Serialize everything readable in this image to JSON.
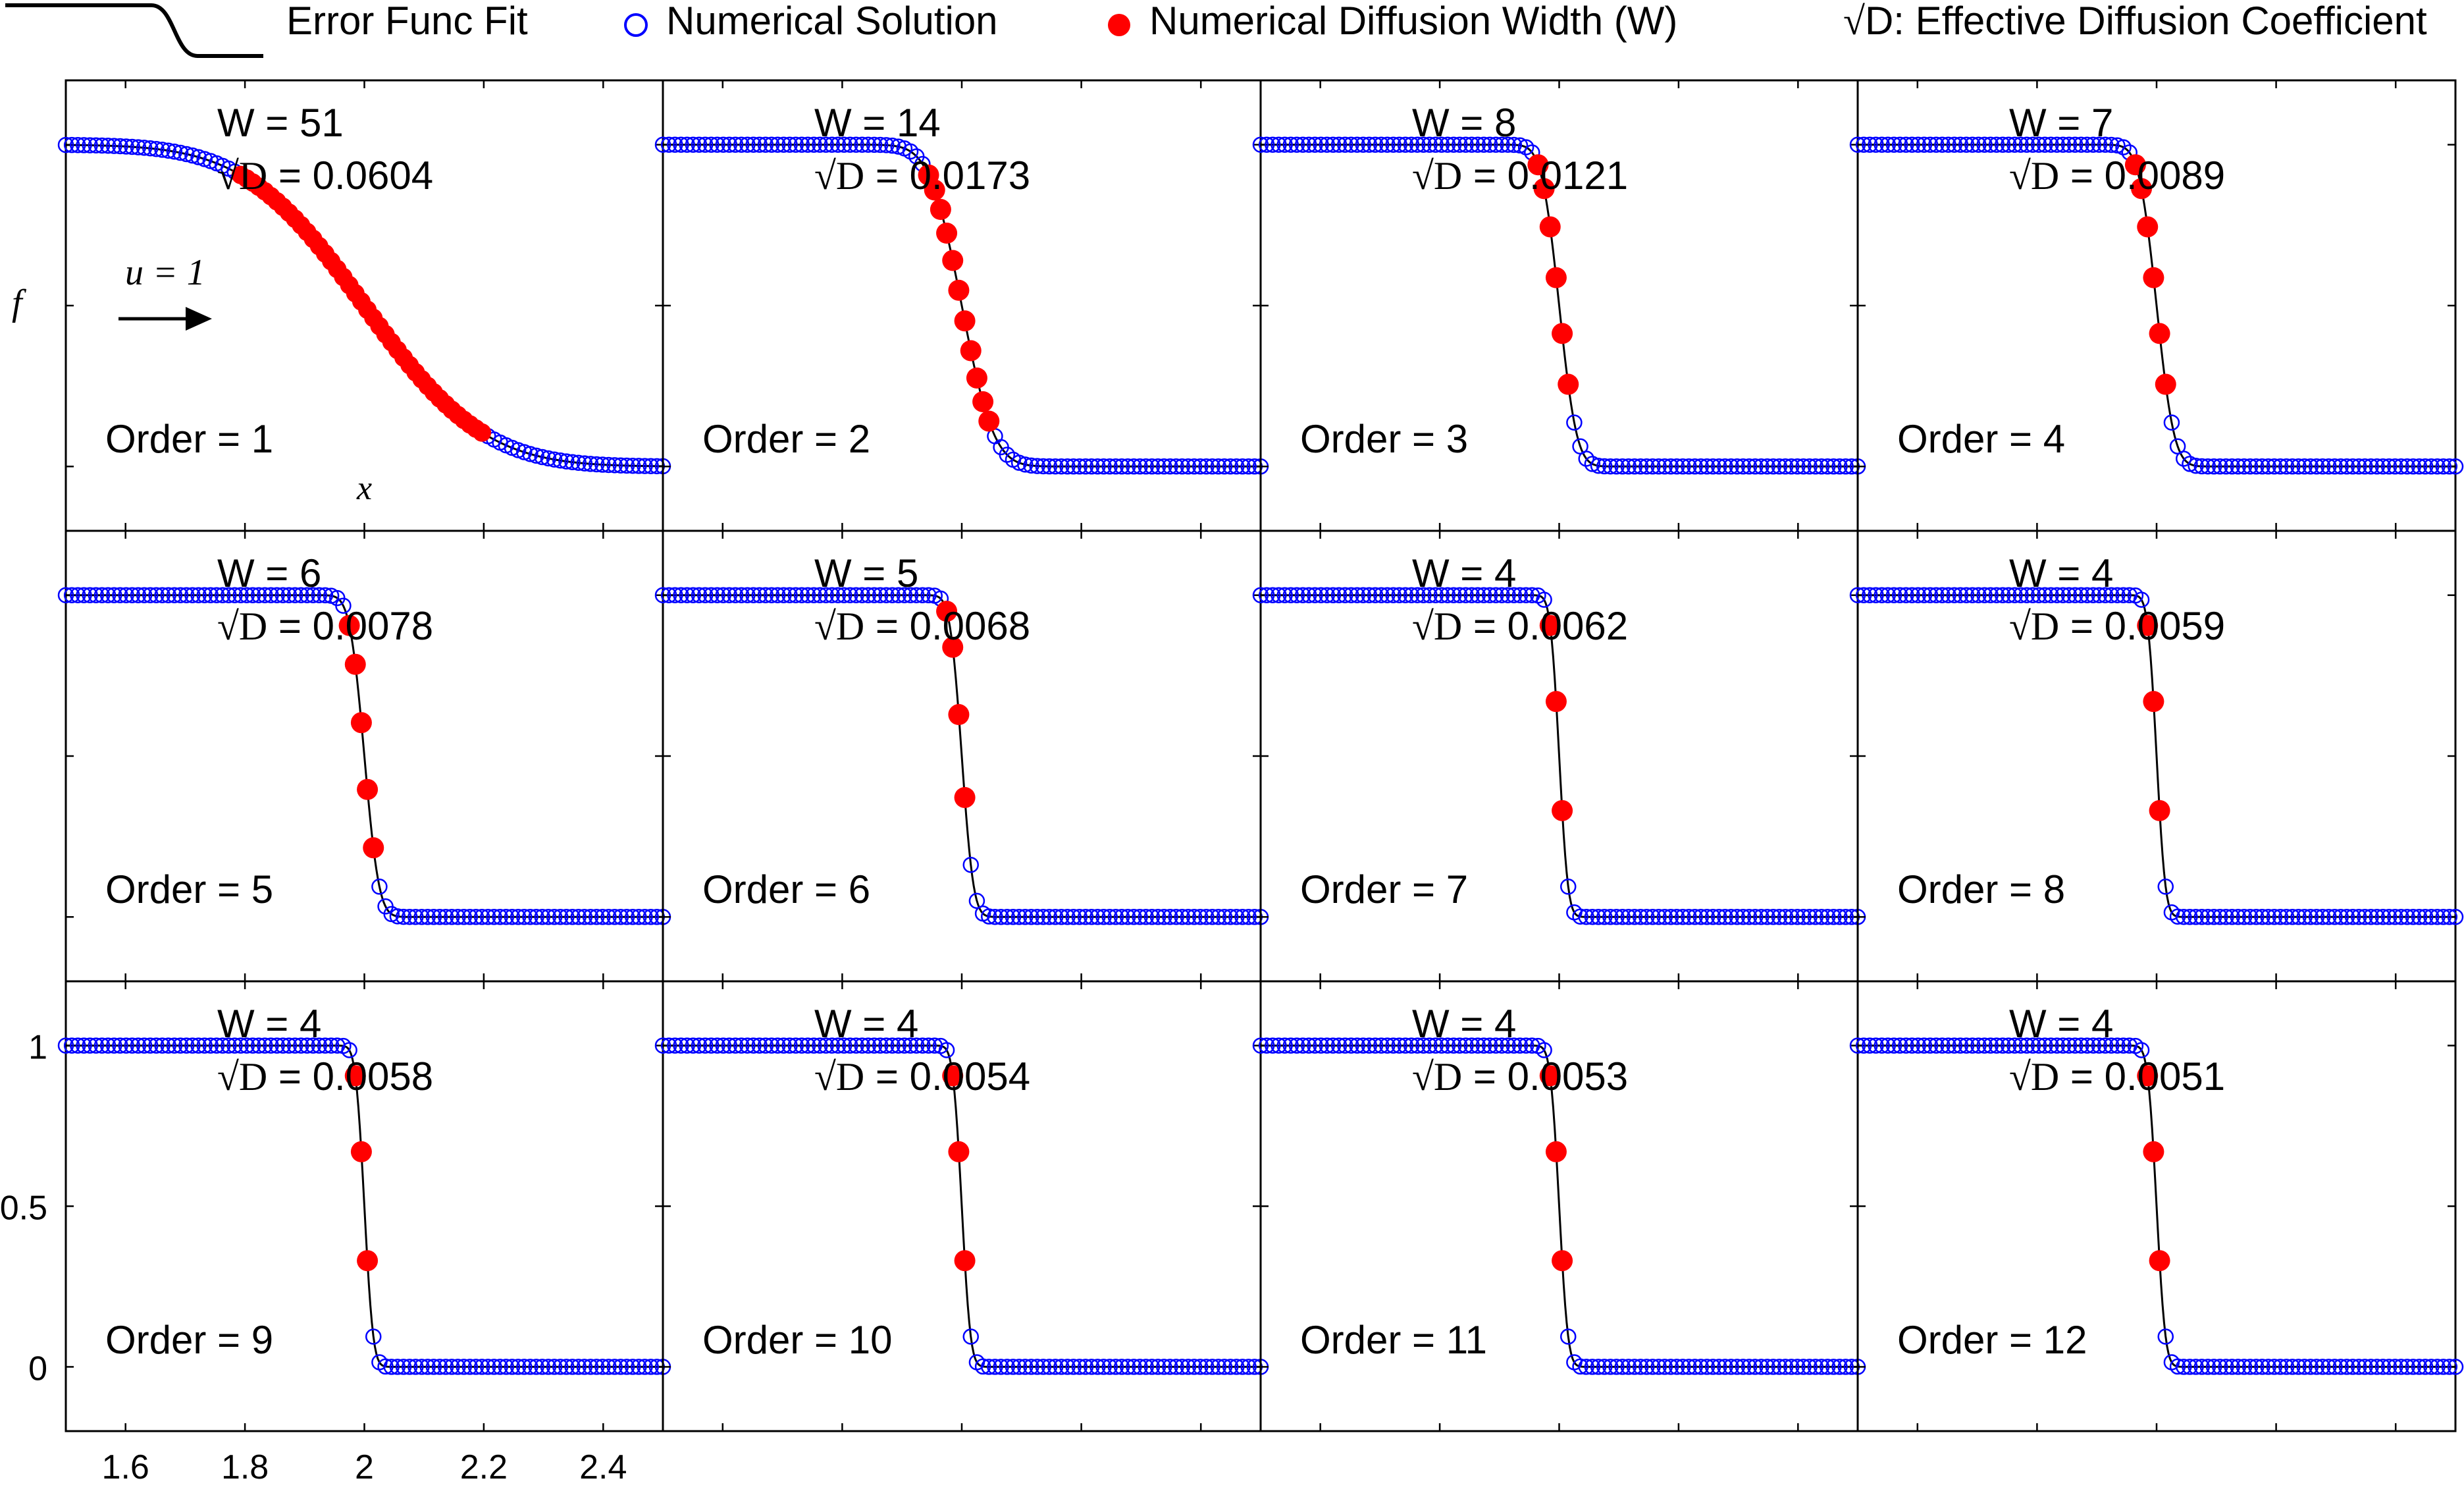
{
  "legend": {
    "fit_label": "Error Func Fit",
    "numerical_label": "Numerical Solution",
    "width_label": "Numerical Diffusion Width (W)",
    "sqrt_symbol": "√",
    "coef_label": "D: Effective Diffusion Coefficient"
  },
  "colors": {
    "axes": "#000000",
    "fit_line": "#000000",
    "open_marker": "#0000ff",
    "filled_marker": "#ff0000",
    "background": "#ffffff"
  },
  "chart_data": {
    "type": "scatter",
    "layout": "grid-3x4",
    "x_range": [
      1.5,
      2.5
    ],
    "y_range": [
      -0.2,
      1.2
    ],
    "x_ticks": [
      "1.6",
      "1.8",
      "2",
      "2.2",
      "2.4"
    ],
    "y_ticks": [
      "0",
      "0.5",
      "1"
    ],
    "xlabel": "x",
    "ylabel": "f",
    "velocity_label": "u = 1",
    "grid_points": 100,
    "front_center": 2.0,
    "panels": [
      {
        "order": 1,
        "order_label": "Order = 1",
        "w_label": "W = 51",
        "d_value": " = 0.0604",
        "W": 51,
        "sqrtD": 0.0604
      },
      {
        "order": 2,
        "order_label": "Order = 2",
        "w_label": "W = 14",
        "d_value": " = 0.0173",
        "W": 14,
        "sqrtD": 0.0173
      },
      {
        "order": 3,
        "order_label": "Order = 3",
        "w_label": "W = 8",
        "d_value": " = 0.0121",
        "W": 8,
        "sqrtD": 0.0121
      },
      {
        "order": 4,
        "order_label": "Order = 4",
        "w_label": "W = 7",
        "d_value": " = 0.0089",
        "W": 7,
        "sqrtD": 0.0089
      },
      {
        "order": 5,
        "order_label": "Order = 5",
        "w_label": "W = 6",
        "d_value": " = 0.0078",
        "W": 6,
        "sqrtD": 0.0078
      },
      {
        "order": 6,
        "order_label": "Order = 6",
        "w_label": "W = 5",
        "d_value": " = 0.0068",
        "W": 5,
        "sqrtD": 0.0068
      },
      {
        "order": 7,
        "order_label": "Order = 7",
        "w_label": "W = 4",
        "d_value": " = 0.0062",
        "W": 4,
        "sqrtD": 0.0062
      },
      {
        "order": 8,
        "order_label": "Order = 8",
        "w_label": "W = 4",
        "d_value": " = 0.0059",
        "W": 4,
        "sqrtD": 0.0059
      },
      {
        "order": 9,
        "order_label": "Order = 9",
        "w_label": "W = 4",
        "d_value": " = 0.0058",
        "W": 4,
        "sqrtD": 0.0058
      },
      {
        "order": 10,
        "order_label": "Order = 10",
        "w_label": "W = 4",
        "d_value": " = 0.0054",
        "W": 4,
        "sqrtD": 0.0054
      },
      {
        "order": 11,
        "order_label": "Order = 11",
        "w_label": "W = 4",
        "d_value": " = 0.0053",
        "W": 4,
        "sqrtD": 0.0053
      },
      {
        "order": 12,
        "order_label": "Order = 12",
        "w_label": "W = 4",
        "d_value": " = 0.0051",
        "W": 4,
        "sqrtD": 0.0051
      }
    ]
  }
}
